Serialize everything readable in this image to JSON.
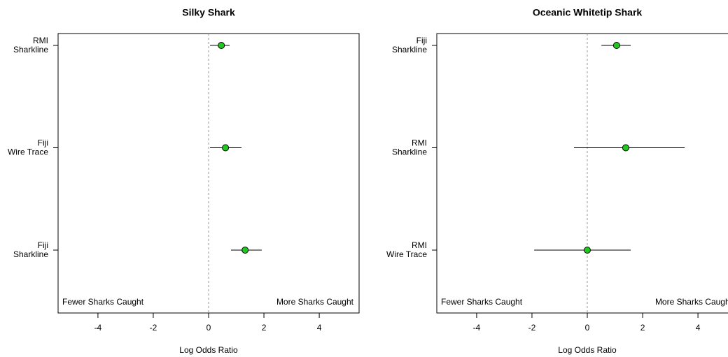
{
  "chart_data": [
    {
      "type": "forest",
      "title": "Silky Shark",
      "xlabel": "Log Odds Ratio",
      "annotations": [
        "Fewer Sharks Caught",
        "More Sharks Caught"
      ],
      "categories": [
        "RMI Sharkline",
        "Fiji Wire Trace",
        "Fiji Sharkline"
      ],
      "values": [
        0.46,
        0.61,
        1.32
      ],
      "lower": [
        0.05,
        0.05,
        0.81
      ],
      "upper": [
        0.76,
        1.19,
        1.92
      ],
      "color": "#1ec81e",
      "reference_line": 0,
      "xlim": [
        -5.44,
        5.44
      ],
      "xticks": [
        -4,
        -2,
        0,
        2,
        4
      ]
    },
    {
      "type": "forest",
      "title": "Oceanic Whitetip Shark",
      "xlabel": "Log Odds Ratio",
      "annotations": [
        "Fewer Sharks Caught",
        "More Sharks Caught"
      ],
      "categories": [
        "Fiji Sharkline",
        "RMI Sharkline",
        "RMI Wire Trace"
      ],
      "values": [
        1.06,
        1.39,
        0
      ],
      "lower": [
        0.51,
        -0.48,
        -1.92
      ],
      "upper": [
        1.57,
        3.52,
        1.57
      ],
      "color": "#1ec81e",
      "reference_line": 0,
      "xlim": [
        -5.44,
        5.44
      ],
      "xticks": [
        -4,
        -2,
        0,
        2,
        4
      ]
    }
  ]
}
